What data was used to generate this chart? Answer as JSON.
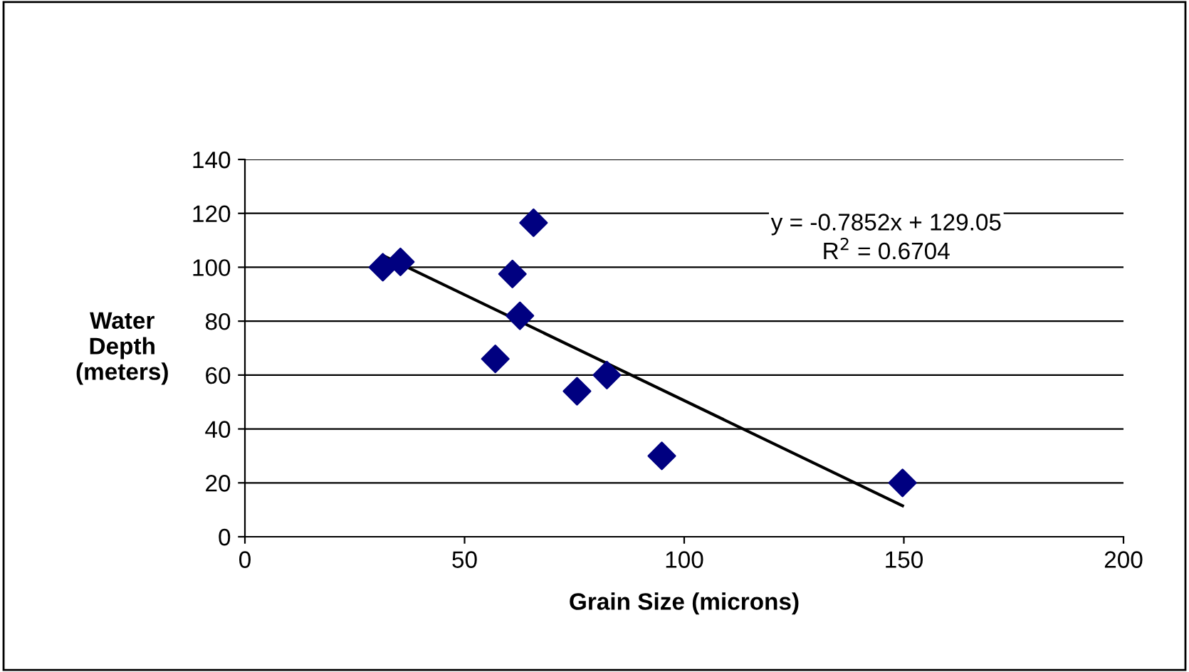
{
  "chart_data": {
    "type": "scatter",
    "xlabel": "Grain Size (microns)",
    "ylabel": "Water\nDepth\n(meters)",
    "xlim": [
      0,
      200
    ],
    "xticks": [
      0,
      50,
      100,
      150,
      200
    ],
    "ylim": [
      0,
      140
    ],
    "yticks": [
      0,
      20,
      40,
      60,
      80,
      100,
      120,
      140
    ],
    "grid": "y",
    "legend": false,
    "series": [
      {
        "marker": "diamond",
        "color": "#000080",
        "x": [
          31.4,
          35.4,
          60.9,
          65.7,
          62.6,
          57.0,
          75.6,
          82.4,
          94.9,
          149.7
        ],
        "values": [
          100,
          102,
          97.5,
          116.5,
          82,
          66,
          54,
          60,
          30,
          20
        ]
      },
      {
        "type": "line",
        "marker": "none",
        "color": "#000000",
        "x": [
          31.4,
          149.7
        ],
        "values": [
          104.4,
          11.5
        ]
      }
    ],
    "annotations": [
      "y = -0.7852x + 129.05\nR$^{2}$ = 0.6704"
    ]
  }
}
